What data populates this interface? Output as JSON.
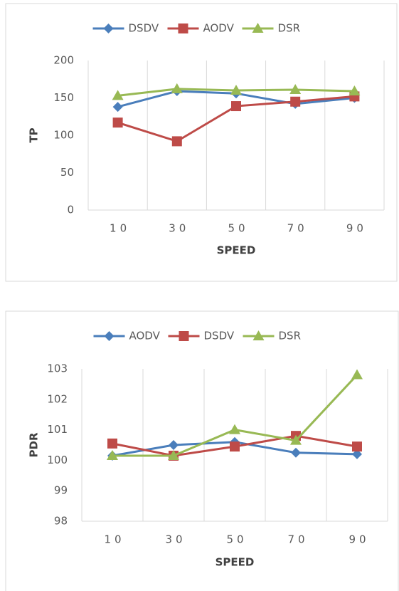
{
  "chart_data": [
    {
      "type": "line",
      "categories": [
        "10",
        "30",
        "50",
        "70",
        "90"
      ],
      "x_label": "SPEED",
      "y_label": "TP",
      "ylim": [
        0,
        200
      ],
      "yticks": [
        0,
        50,
        100,
        150,
        200
      ],
      "grid": "vertical",
      "legend": "top",
      "series": [
        {
          "name": "DSDV",
          "color": "#4a7ebb",
          "marker": "diamond",
          "values": [
            138,
            159,
            156,
            142,
            150
          ]
        },
        {
          "name": "AODV",
          "color": "#be4b48",
          "marker": "square",
          "values": [
            117,
            92,
            139,
            145,
            152
          ]
        },
        {
          "name": "DSR",
          "color": "#98b954",
          "marker": "triangle",
          "values": [
            153,
            162,
            160,
            161,
            159
          ]
        }
      ]
    },
    {
      "type": "line",
      "categories": [
        "10",
        "30",
        "50",
        "70",
        "90"
      ],
      "x_label": "SPEED",
      "y_label": "PDR",
      "ylim": [
        98,
        103
      ],
      "yticks": [
        98,
        99,
        100,
        101,
        102,
        103
      ],
      "grid": "vertical",
      "legend": "top",
      "series": [
        {
          "name": "AODV",
          "color": "#4a7ebb",
          "marker": "diamond",
          "values": [
            100.15,
            100.5,
            100.6,
            100.25,
            100.2
          ]
        },
        {
          "name": "DSDV",
          "color": "#be4b48",
          "marker": "square",
          "values": [
            100.55,
            100.15,
            100.45,
            100.8,
            100.45
          ]
        },
        {
          "name": "DSR",
          "color": "#98b954",
          "marker": "triangle",
          "values": [
            100.15,
            100.15,
            101.0,
            100.65,
            102.8
          ]
        }
      ]
    }
  ]
}
